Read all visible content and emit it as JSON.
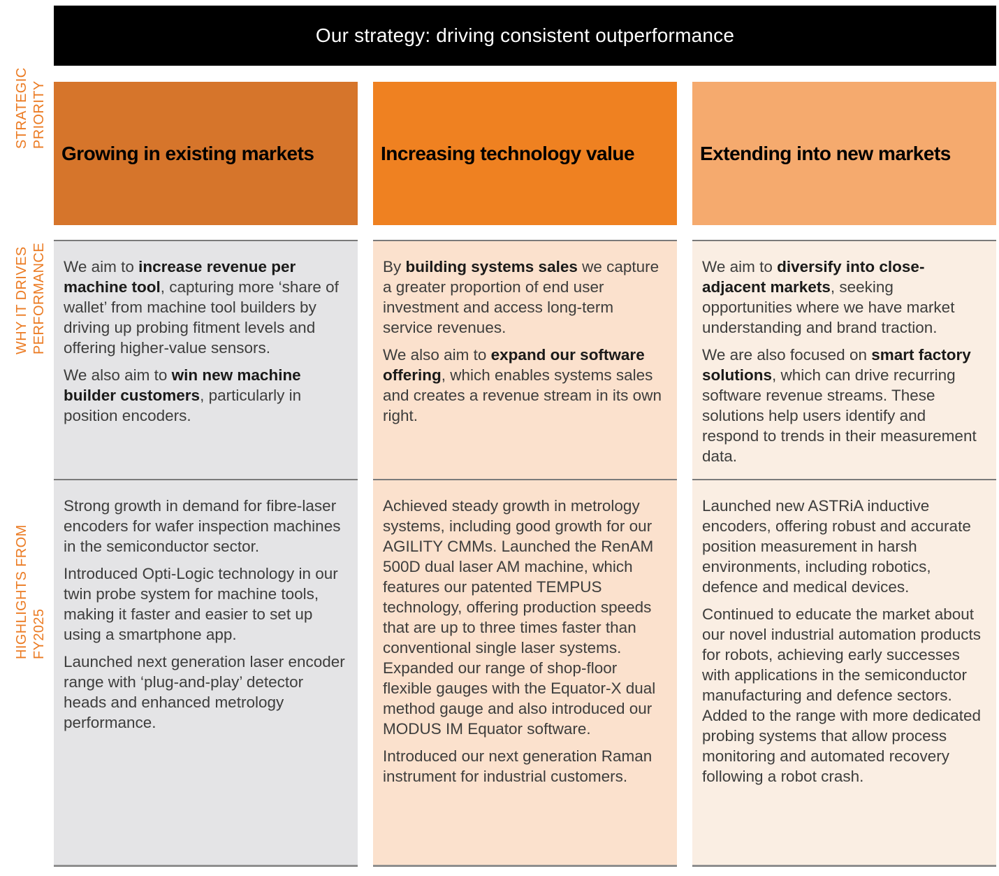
{
  "page": {
    "title": "Our strategy: driving consistent outperformance"
  },
  "colors": {
    "title_bar_bg": "#000000",
    "title_bar_fg": "#ffffff",
    "row_label": "#eb7b23",
    "body_text": "#3d3d3c",
    "section_border": "#7a7a7a"
  },
  "row_labels": [
    {
      "lines": [
        "STRATEGIC",
        "PRIORITY"
      ]
    },
    {
      "lines": [
        "WHY IT DRIVES",
        "PERFORMANCE"
      ]
    },
    {
      "lines": [
        "HIGHLIGHTS FROM",
        "FY2025"
      ]
    }
  ],
  "columns": [
    {
      "header": "Growing in existing markets",
      "header_bg": "#d6752b",
      "body_bg": "#e4e4e6",
      "why": [
        [
          {
            "t": "We aim to "
          },
          {
            "t": "increase revenue per machine tool",
            "b": true
          },
          {
            "t": ", capturing more ‘share of wallet’ from machine tool builders by driving up probing fitment levels and offering higher-value sensors."
          }
        ],
        [
          {
            "t": "We also aim to "
          },
          {
            "t": "win new machine builder customers",
            "b": true
          },
          {
            "t": ", particularly in position encoders."
          }
        ]
      ],
      "highlights": [
        [
          {
            "t": "Strong growth in demand for fibre-laser encoders for wafer inspection machines in the semiconductor sector."
          }
        ],
        [
          {
            "t": "Introduced Opti-Logic technology in our twin probe system for machine tools, making it faster and easier to set up using a smartphone app."
          }
        ],
        [
          {
            "t": "Launched next generation laser encoder range with ‘plug-and-play’ detector heads and enhanced metrology performance."
          }
        ]
      ]
    },
    {
      "header": "Increasing technology value",
      "header_bg": "#ef8121",
      "body_bg": "#fbe1cd",
      "why": [
        [
          {
            "t": "By "
          },
          {
            "t": "building systems sales",
            "b": true
          },
          {
            "t": " we capture a greater proportion of end user investment and access long-term service revenues."
          }
        ],
        [
          {
            "t": "We also aim to "
          },
          {
            "t": "expand our software offering",
            "b": true
          },
          {
            "t": ", which enables systems sales and creates a revenue stream in its own right."
          }
        ]
      ],
      "highlights": [
        [
          {
            "t": "Achieved steady growth in metrology systems, including good growth for our AGILITY CMMs. Launched the RenAM 500D dual laser AM machine, which features our patented TEMPUS technology, offering production speeds that are up to three times faster than conventional single laser systems. Expanded our range of shop-floor flexible gauges with the Equator-X dual method gauge and also introduced our MODUS IM Equator software."
          }
        ],
        [
          {
            "t": "Introduced our next generation Raman instrument for industrial customers."
          }
        ]
      ]
    },
    {
      "header": "Extending into new markets",
      "header_bg": "#f5aa6e",
      "body_bg": "#faeee3",
      "why": [
        [
          {
            "t": "We aim to "
          },
          {
            "t": "diversify into close-adjacent markets",
            "b": true
          },
          {
            "t": ", seeking opportunities where we have market understanding and brand traction."
          }
        ],
        [
          {
            "t": "We are also focused on "
          },
          {
            "t": "smart factory solutions",
            "b": true
          },
          {
            "t": ", which can drive recurring software revenue streams. These solutions help users identify and respond to trends in their measurement data."
          }
        ]
      ],
      "highlights": [
        [
          {
            "t": "Launched new ASTRiA inductive encoders, offering robust and accurate position measurement in harsh environments, including robotics, defence and medical devices."
          }
        ],
        [
          {
            "t": "Continued to educate the market about our novel industrial automation products for robots, achieving early successes with applications in the semiconductor manufacturing and defence sectors. Added to the range with more dedicated probing systems that allow process monitoring and automated recovery following a robot crash."
          }
        ]
      ]
    }
  ]
}
